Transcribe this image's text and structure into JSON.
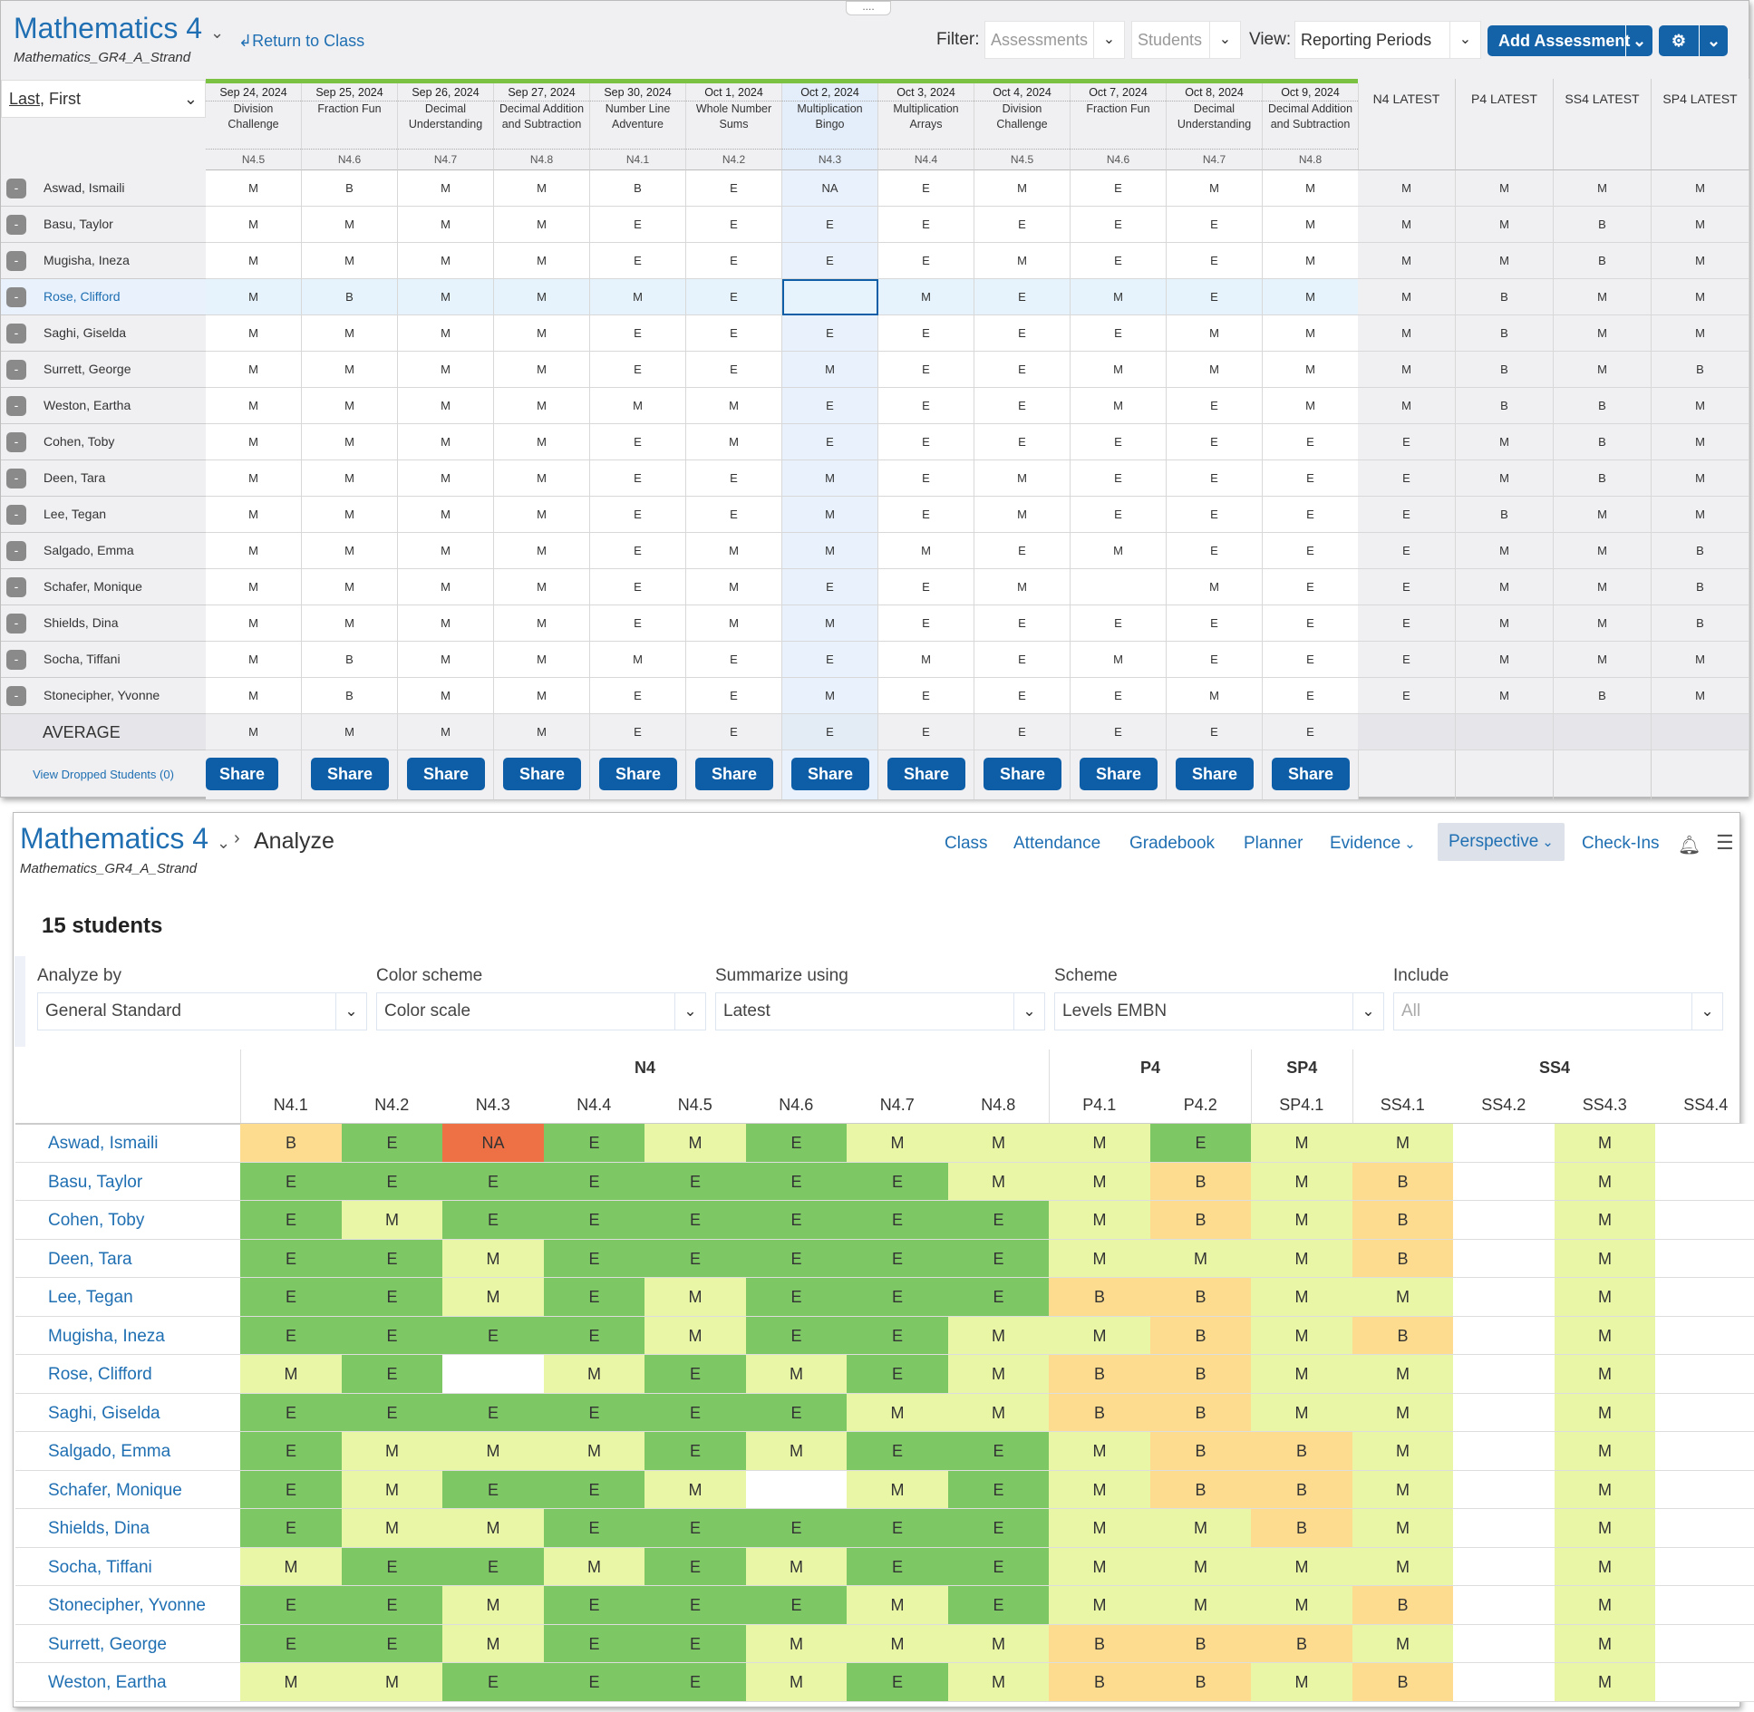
{
  "gradebook": {
    "title": "Mathematics 4",
    "subtitle": "Mathematics_GR4_A_Strand",
    "return_label": "Return to Class",
    "filter_label": "Filter:",
    "filter_assessments": "Assessments",
    "filter_students": "Students",
    "view_label": "View:",
    "view_value": "Reporting Periods",
    "add_assessment": "Add Assessment",
    "sort_last": "Last",
    "sort_first": ", First",
    "assessments": [
      {
        "date": "Sep 24, 2024",
        "name": "Division Challenge",
        "code": "N4.5"
      },
      {
        "date": "Sep 25, 2024",
        "name": "Fraction Fun",
        "code": "N4.6"
      },
      {
        "date": "Sep 26, 2024",
        "name": "Decimal Understanding",
        "code": "N4.7"
      },
      {
        "date": "Sep 27, 2024",
        "name": "Decimal Addition and Subtraction",
        "code": "N4.8"
      },
      {
        "date": "Sep 30, 2024",
        "name": "Number Line Adventure",
        "code": "N4.1"
      },
      {
        "date": "Oct 1, 2024",
        "name": "Whole Number Sums",
        "code": "N4.2"
      },
      {
        "date": "Oct 2, 2024",
        "name": "Multiplication Bingo",
        "code": "N4.3"
      },
      {
        "date": "Oct 3, 2024",
        "name": "Multiplication Arrays",
        "code": "N4.4"
      },
      {
        "date": "Oct 4, 2024",
        "name": "Division Challenge",
        "code": "N4.5"
      },
      {
        "date": "Oct 7, 2024",
        "name": "Fraction Fun",
        "code": "N4.6"
      },
      {
        "date": "Oct 8, 2024",
        "name": "Decimal Understanding",
        "code": "N4.7"
      },
      {
        "date": "Oct 9, 2024",
        "name": "Decimal Addition and Subtraction",
        "code": "N4.8"
      }
    ],
    "latest_headers": [
      "N4 LATEST",
      "P4 LATEST",
      "SS4 LATEST",
      "SP4 LATEST"
    ],
    "rows": [
      {
        "name": "Aswad, Ismaili",
        "scores": [
          "M",
          "B",
          "M",
          "M",
          "B",
          "E",
          "NA",
          "E",
          "M",
          "E",
          "M",
          "M"
        ],
        "latest": [
          "M",
          "M",
          "M",
          "M"
        ]
      },
      {
        "name": "Basu, Taylor",
        "scores": [
          "M",
          "M",
          "M",
          "M",
          "E",
          "E",
          "E",
          "E",
          "E",
          "E",
          "E",
          "M"
        ],
        "latest": [
          "M",
          "M",
          "B",
          "M"
        ]
      },
      {
        "name": "Mugisha, Ineza",
        "scores": [
          "M",
          "M",
          "M",
          "M",
          "E",
          "E",
          "E",
          "E",
          "M",
          "E",
          "E",
          "M"
        ],
        "latest": [
          "M",
          "M",
          "B",
          "M"
        ]
      },
      {
        "name": "Rose, Clifford",
        "scores": [
          "M",
          "B",
          "M",
          "M",
          "M",
          "E",
          "",
          "M",
          "E",
          "M",
          "E",
          "M"
        ],
        "latest": [
          "M",
          "B",
          "M",
          "M"
        ],
        "selected": true
      },
      {
        "name": "Saghi, Giselda",
        "scores": [
          "M",
          "M",
          "M",
          "M",
          "E",
          "E",
          "E",
          "E",
          "E",
          "E",
          "M",
          "M"
        ],
        "latest": [
          "M",
          "B",
          "M",
          "M"
        ]
      },
      {
        "name": "Surrett, George",
        "scores": [
          "M",
          "M",
          "M",
          "M",
          "E",
          "E",
          "M",
          "E",
          "E",
          "M",
          "M",
          "M"
        ],
        "latest": [
          "M",
          "B",
          "M",
          "B"
        ]
      },
      {
        "name": "Weston, Eartha",
        "scores": [
          "M",
          "M",
          "M",
          "M",
          "M",
          "M",
          "E",
          "E",
          "E",
          "M",
          "E",
          "M"
        ],
        "latest": [
          "M",
          "B",
          "B",
          "M"
        ]
      },
      {
        "name": "Cohen, Toby",
        "scores": [
          "M",
          "M",
          "M",
          "M",
          "E",
          "M",
          "E",
          "E",
          "E",
          "E",
          "E",
          "E"
        ],
        "latest": [
          "E",
          "M",
          "B",
          "M"
        ]
      },
      {
        "name": "Deen, Tara",
        "scores": [
          "M",
          "M",
          "M",
          "M",
          "E",
          "E",
          "M",
          "E",
          "M",
          "E",
          "E",
          "E"
        ],
        "latest": [
          "E",
          "M",
          "B",
          "M"
        ]
      },
      {
        "name": "Lee, Tegan",
        "scores": [
          "M",
          "M",
          "M",
          "M",
          "E",
          "E",
          "M",
          "E",
          "M",
          "E",
          "E",
          "E"
        ],
        "latest": [
          "E",
          "B",
          "M",
          "M"
        ]
      },
      {
        "name": "Salgado, Emma",
        "scores": [
          "M",
          "M",
          "M",
          "M",
          "E",
          "M",
          "M",
          "M",
          "E",
          "M",
          "E",
          "E"
        ],
        "latest": [
          "E",
          "M",
          "M",
          "B"
        ]
      },
      {
        "name": "Schafer, Monique",
        "scores": [
          "M",
          "M",
          "M",
          "M",
          "E",
          "M",
          "E",
          "E",
          "M",
          "",
          "M",
          "E"
        ],
        "latest": [
          "E",
          "M",
          "M",
          "B"
        ]
      },
      {
        "name": "Shields, Dina",
        "scores": [
          "M",
          "M",
          "M",
          "M",
          "E",
          "M",
          "M",
          "E",
          "E",
          "E",
          "E",
          "E"
        ],
        "latest": [
          "E",
          "M",
          "M",
          "B"
        ]
      },
      {
        "name": "Socha, Tiffani",
        "scores": [
          "M",
          "B",
          "M",
          "M",
          "M",
          "E",
          "E",
          "M",
          "E",
          "M",
          "E",
          "E"
        ],
        "latest": [
          "E",
          "M",
          "M",
          "M"
        ]
      },
      {
        "name": "Stonecipher, Yvonne",
        "scores": [
          "M",
          "B",
          "M",
          "M",
          "E",
          "E",
          "M",
          "E",
          "E",
          "E",
          "M",
          "E"
        ],
        "latest": [
          "E",
          "M",
          "B",
          "M"
        ]
      }
    ],
    "average_label": "AVERAGE",
    "average": [
      "M",
      "M",
      "M",
      "M",
      "E",
      "E",
      "E",
      "E",
      "E",
      "E",
      "E",
      "E"
    ],
    "dropped_link": "View Dropped Students (0)",
    "share_label": "Share"
  },
  "analyze": {
    "title": "Mathematics 4",
    "breadcrumb": "Analyze",
    "subtitle": "Mathematics_GR4_A_Strand",
    "nav": [
      "Class",
      "Attendance",
      "Gradebook",
      "Planner",
      "Evidence",
      "Perspective",
      "Check-Ins"
    ],
    "active_nav": "Perspective",
    "count": "15 students",
    "filters": [
      {
        "label": "Analyze by",
        "value": "General Standard"
      },
      {
        "label": "Color scheme",
        "value": "Color scale"
      },
      {
        "label": "Summarize using",
        "value": "Latest"
      },
      {
        "label": "Scheme",
        "value": "Levels EMBN"
      },
      {
        "label": "Include",
        "value": "All",
        "placeholder": true
      }
    ],
    "groups": [
      {
        "name": "N4",
        "span": 8
      },
      {
        "name": "P4",
        "span": 2
      },
      {
        "name": "SP4",
        "span": 1
      },
      {
        "name": "SS4",
        "span": 4
      }
    ],
    "columns": [
      "N4.1",
      "N4.2",
      "N4.3",
      "N4.4",
      "N4.5",
      "N4.6",
      "N4.7",
      "N4.8",
      "P4.1",
      "P4.2",
      "SP4.1",
      "SS4.1",
      "SS4.2",
      "SS4.3",
      "SS4.4"
    ],
    "colors": {
      "E": "#7dc765",
      "M": "#e9f6a6",
      "B": "#fddc8f",
      "NA": "#ee7045",
      "": "#ffffff"
    },
    "rows": [
      {
        "name": "Aswad, Ismaili",
        "values": [
          "B",
          "E",
          "NA",
          "E",
          "M",
          "E",
          "M",
          "M",
          "M",
          "E",
          "M",
          "M",
          "",
          "M",
          ""
        ]
      },
      {
        "name": "Basu, Taylor",
        "values": [
          "E",
          "E",
          "E",
          "E",
          "E",
          "E",
          "E",
          "M",
          "M",
          "B",
          "M",
          "B",
          "",
          "M",
          ""
        ]
      },
      {
        "name": "Cohen, Toby",
        "values": [
          "E",
          "M",
          "E",
          "E",
          "E",
          "E",
          "E",
          "E",
          "M",
          "B",
          "M",
          "B",
          "",
          "M",
          ""
        ]
      },
      {
        "name": "Deen, Tara",
        "values": [
          "E",
          "E",
          "M",
          "E",
          "E",
          "E",
          "E",
          "E",
          "M",
          "M",
          "M",
          "B",
          "",
          "M",
          ""
        ]
      },
      {
        "name": "Lee, Tegan",
        "values": [
          "E",
          "E",
          "M",
          "E",
          "M",
          "E",
          "E",
          "E",
          "B",
          "B",
          "M",
          "M",
          "",
          "M",
          ""
        ]
      },
      {
        "name": "Mugisha, Ineza",
        "values": [
          "E",
          "E",
          "E",
          "E",
          "M",
          "E",
          "E",
          "M",
          "M",
          "B",
          "M",
          "B",
          "",
          "M",
          ""
        ]
      },
      {
        "name": "Rose, Clifford",
        "values": [
          "M",
          "E",
          "",
          "M",
          "E",
          "M",
          "E",
          "M",
          "B",
          "B",
          "M",
          "M",
          "",
          "M",
          ""
        ]
      },
      {
        "name": "Saghi, Giselda",
        "values": [
          "E",
          "E",
          "E",
          "E",
          "E",
          "E",
          "M",
          "M",
          "B",
          "B",
          "M",
          "M",
          "",
          "M",
          ""
        ]
      },
      {
        "name": "Salgado, Emma",
        "values": [
          "E",
          "M",
          "M",
          "M",
          "E",
          "M",
          "E",
          "E",
          "M",
          "B",
          "B",
          "M",
          "",
          "M",
          ""
        ]
      },
      {
        "name": "Schafer, Monique",
        "values": [
          "E",
          "M",
          "E",
          "E",
          "M",
          "",
          "M",
          "E",
          "M",
          "B",
          "B",
          "M",
          "",
          "M",
          ""
        ]
      },
      {
        "name": "Shields, Dina",
        "values": [
          "E",
          "M",
          "M",
          "E",
          "E",
          "E",
          "E",
          "E",
          "M",
          "M",
          "B",
          "M",
          "",
          "M",
          ""
        ]
      },
      {
        "name": "Socha, Tiffani",
        "values": [
          "M",
          "E",
          "E",
          "M",
          "E",
          "M",
          "E",
          "E",
          "M",
          "M",
          "M",
          "M",
          "",
          "M",
          ""
        ]
      },
      {
        "name": "Stonecipher, Yvonne",
        "values": [
          "E",
          "E",
          "M",
          "E",
          "E",
          "E",
          "M",
          "E",
          "M",
          "M",
          "M",
          "B",
          "",
          "M",
          ""
        ]
      },
      {
        "name": "Surrett, George",
        "values": [
          "E",
          "E",
          "M",
          "E",
          "E",
          "M",
          "M",
          "M",
          "B",
          "B",
          "B",
          "M",
          "",
          "M",
          ""
        ]
      },
      {
        "name": "Weston, Eartha",
        "values": [
          "M",
          "M",
          "E",
          "E",
          "E",
          "M",
          "E",
          "M",
          "B",
          "B",
          "M",
          "B",
          "",
          "M",
          ""
        ]
      }
    ]
  }
}
